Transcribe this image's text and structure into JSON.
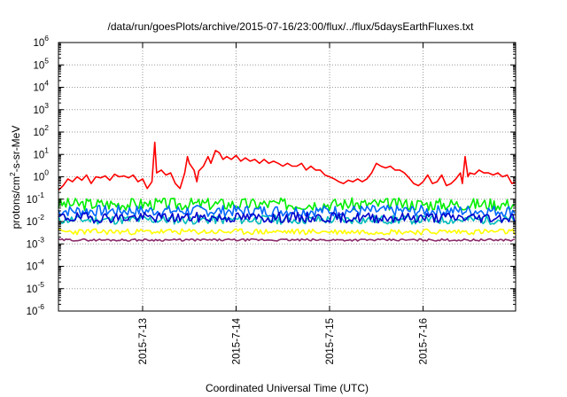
{
  "chart_data": {
    "type": "line",
    "title": "/data/run/goesPlots/archive/2015-07-16/23:00/flux/../flux/5daysEarthFluxes.txt",
    "xlabel": "Coordinated Universal Time (UTC)",
    "ylabel": "protons/cm2-s-sr-MeV",
    "ylabel_base": "protons/cm",
    "ylabel_sup": "2",
    "ylabel_rest": "-s-sr-MeV",
    "yscale": "log",
    "ylim_exp": [
      -6,
      6
    ],
    "ytick_exps": [
      -6,
      -5,
      -4,
      -3,
      -2,
      -1,
      0,
      1,
      2,
      3,
      4,
      5,
      6
    ],
    "ytick_base": "10",
    "xlim_days": [
      12.1,
      16.99
    ],
    "xticks": [
      {
        "day": 13,
        "label": "2015-7-13"
      },
      {
        "day": 14,
        "label": "2015-7-14"
      },
      {
        "day": 15,
        "label": "2015-7-15"
      },
      {
        "day": 16,
        "label": "2015-7-16"
      }
    ],
    "grid": true,
    "series": [
      {
        "color": "#ff0000",
        "points": [
          [
            12.1,
            0.25
          ],
          [
            12.15,
            0.4
          ],
          [
            12.2,
            0.8
          ],
          [
            12.25,
            0.6
          ],
          [
            12.3,
            1.0
          ],
          [
            12.35,
            0.7
          ],
          [
            12.4,
            1.2
          ],
          [
            12.45,
            0.5
          ],
          [
            12.5,
            1.0
          ],
          [
            12.55,
            0.9
          ],
          [
            12.6,
            1.1
          ],
          [
            12.65,
            0.7
          ],
          [
            12.7,
            1.3
          ],
          [
            12.75,
            1.0
          ],
          [
            12.8,
            1.1
          ],
          [
            12.85,
            0.9
          ],
          [
            12.9,
            1.2
          ],
          [
            12.95,
            0.6
          ],
          [
            13.0,
            0.8
          ],
          [
            13.05,
            0.3
          ],
          [
            13.1,
            0.6
          ],
          [
            13.13,
            35
          ],
          [
            13.15,
            1.5
          ],
          [
            13.2,
            2.0
          ],
          [
            13.25,
            1.2
          ],
          [
            13.3,
            1.5
          ],
          [
            13.35,
            0.5
          ],
          [
            13.4,
            0.3
          ],
          [
            13.45,
            1.5
          ],
          [
            13.48,
            8
          ],
          [
            13.5,
            4
          ],
          [
            13.55,
            2
          ],
          [
            13.58,
            0.6
          ],
          [
            13.6,
            1.8
          ],
          [
            13.65,
            3
          ],
          [
            13.7,
            8
          ],
          [
            13.73,
            4
          ],
          [
            13.78,
            15
          ],
          [
            13.82,
            12
          ],
          [
            13.86,
            6
          ],
          [
            13.9,
            8
          ],
          [
            13.95,
            6
          ],
          [
            14.0,
            9
          ],
          [
            14.05,
            5
          ],
          [
            14.1,
            7
          ],
          [
            14.15,
            5
          ],
          [
            14.2,
            6
          ],
          [
            14.25,
            4
          ],
          [
            14.3,
            6
          ],
          [
            14.35,
            4
          ],
          [
            14.4,
            5
          ],
          [
            14.45,
            4
          ],
          [
            14.5,
            3
          ],
          [
            14.55,
            4
          ],
          [
            14.6,
            3
          ],
          [
            14.65,
            3
          ],
          [
            14.7,
            4
          ],
          [
            14.75,
            2
          ],
          [
            14.8,
            3
          ],
          [
            14.85,
            2
          ],
          [
            14.9,
            2
          ],
          [
            14.95,
            1.2
          ],
          [
            15.0,
            1.0
          ],
          [
            15.05,
            0.8
          ],
          [
            15.1,
            0.6
          ],
          [
            15.15,
            0.5
          ],
          [
            15.2,
            0.7
          ],
          [
            15.25,
            0.6
          ],
          [
            15.3,
            0.8
          ],
          [
            15.35,
            0.6
          ],
          [
            15.4,
            0.8
          ],
          [
            15.45,
            1.5
          ],
          [
            15.5,
            4
          ],
          [
            15.55,
            3
          ],
          [
            15.6,
            2.5
          ],
          [
            15.65,
            3.0
          ],
          [
            15.7,
            2.0
          ],
          [
            15.75,
            2.0
          ],
          [
            15.8,
            1.5
          ],
          [
            15.85,
            0.9
          ],
          [
            15.9,
            0.5
          ],
          [
            15.95,
            0.4
          ],
          [
            16.0,
            0.6
          ],
          [
            16.05,
            1.2
          ],
          [
            16.1,
            0.5
          ],
          [
            16.15,
            0.6
          ],
          [
            16.2,
            1.2
          ],
          [
            16.25,
            0.4
          ],
          [
            16.3,
            0.5
          ],
          [
            16.35,
            0.8
          ],
          [
            16.4,
            1.5
          ],
          [
            16.42,
            0.5
          ],
          [
            16.45,
            8
          ],
          [
            16.48,
            1.0
          ],
          [
            16.5,
            1.5
          ],
          [
            16.55,
            1.3
          ],
          [
            16.6,
            2.0
          ],
          [
            16.65,
            1.5
          ],
          [
            16.7,
            1.5
          ],
          [
            16.75,
            1.2
          ],
          [
            16.8,
            1.5
          ],
          [
            16.85,
            1.0
          ],
          [
            16.9,
            1.2
          ],
          [
            16.95,
            0.5
          ],
          [
            16.99,
            0.6
          ]
        ]
      },
      {
        "color": "#00ee00",
        "base": 0.06,
        "amp": 1.9,
        "seed": 3
      },
      {
        "color": "#0066ff",
        "base": 0.03,
        "amp": 1.8,
        "seed": 7
      },
      {
        "color": "#00bbbb",
        "base": 0.012,
        "amp": 1.6,
        "seed": 11
      },
      {
        "color": "#0000cc",
        "base": 0.015,
        "amp": 1.7,
        "seed": 19
      },
      {
        "color": "#ffff00",
        "base": 0.0035,
        "amp": 1.35,
        "seed": 23
      },
      {
        "color": "#8b2a6a",
        "base": 0.0015,
        "amp": 1.12,
        "seed": 29
      }
    ]
  }
}
